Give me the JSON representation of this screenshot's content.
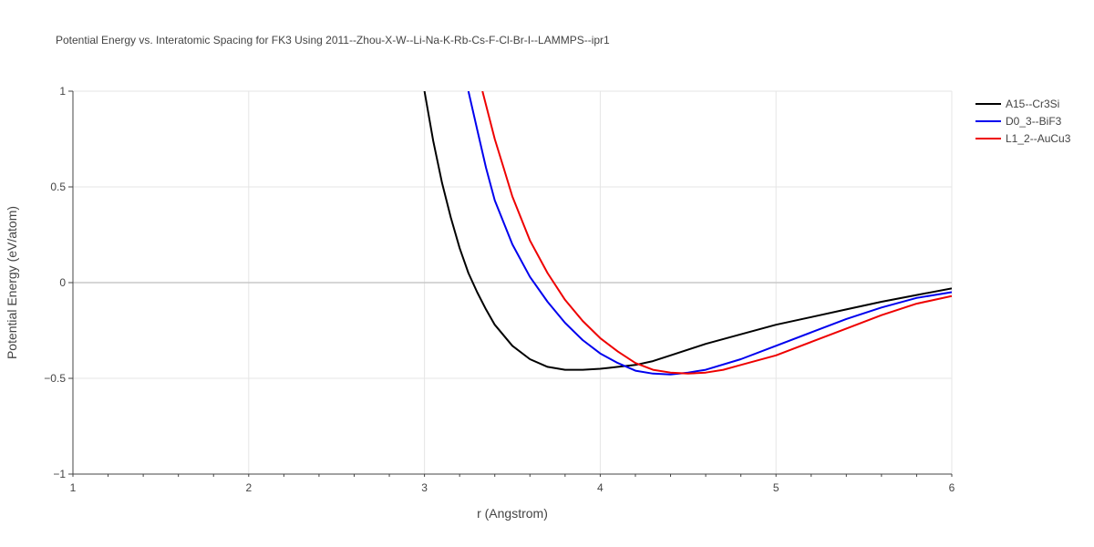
{
  "chart_data": {
    "type": "line",
    "title": "Potential Energy vs. Interatomic Spacing for FK3 Using 2011--Zhou-X-W--Li-Na-K-Rb-Cs-F-Cl-Br-I--LAMMPS--ipr1",
    "xlabel": "r (Angstrom)",
    "ylabel": "Potential Energy (eV/atom)",
    "xlim": [
      1,
      6
    ],
    "ylim": [
      -1,
      1
    ],
    "xticks": [
      1,
      2,
      3,
      4,
      5,
      6
    ],
    "xtick_labels": [
      "1",
      "2",
      "3",
      "4",
      "5",
      "6"
    ],
    "yticks": [
      -1,
      -0.5,
      0,
      0.5,
      1
    ],
    "ytick_labels": [
      "−1",
      "−0.5",
      "0",
      "0.5",
      "1"
    ],
    "grid": true,
    "legend_position": "top-right",
    "series": [
      {
        "name": "A15--Cr3Si",
        "color": "#000000",
        "x": [
          3.0,
          3.05,
          3.1,
          3.15,
          3.2,
          3.25,
          3.3,
          3.35,
          3.4,
          3.5,
          3.6,
          3.7,
          3.8,
          3.9,
          4.0,
          4.05,
          4.1,
          4.2,
          4.3,
          4.4,
          4.6,
          4.8,
          5.0,
          5.2,
          5.4,
          5.6,
          5.8,
          6.0
        ],
        "y": [
          1.0,
          0.74,
          0.52,
          0.34,
          0.18,
          0.05,
          -0.05,
          -0.14,
          -0.22,
          -0.33,
          -0.4,
          -0.44,
          -0.455,
          -0.455,
          -0.45,
          -0.445,
          -0.44,
          -0.43,
          -0.41,
          -0.38,
          -0.32,
          -0.27,
          -0.22,
          -0.18,
          -0.14,
          -0.1,
          -0.065,
          -0.03
        ]
      },
      {
        "name": "D0_3--BiF3",
        "color": "#0000ee",
        "x": [
          3.25,
          3.3,
          3.35,
          3.4,
          3.5,
          3.6,
          3.7,
          3.8,
          3.9,
          4.0,
          4.1,
          4.2,
          4.3,
          4.4,
          4.5,
          4.6,
          4.8,
          5.0,
          5.2,
          5.4,
          5.6,
          5.8,
          6.0
        ],
        "y": [
          1.0,
          0.8,
          0.6,
          0.43,
          0.2,
          0.03,
          -0.1,
          -0.21,
          -0.3,
          -0.37,
          -0.42,
          -0.46,
          -0.475,
          -0.48,
          -0.47,
          -0.455,
          -0.4,
          -0.33,
          -0.26,
          -0.19,
          -0.13,
          -0.08,
          -0.05
        ]
      },
      {
        "name": "L1_2--AuCu3",
        "color": "#ee0000",
        "x": [
          3.33,
          3.4,
          3.45,
          3.5,
          3.6,
          3.7,
          3.8,
          3.9,
          4.0,
          4.1,
          4.2,
          4.3,
          4.4,
          4.5,
          4.6,
          4.7,
          4.8,
          5.0,
          5.2,
          5.4,
          5.6,
          5.8,
          6.0
        ],
        "y": [
          1.0,
          0.75,
          0.6,
          0.45,
          0.22,
          0.05,
          -0.09,
          -0.2,
          -0.29,
          -0.36,
          -0.42,
          -0.455,
          -0.47,
          -0.475,
          -0.47,
          -0.455,
          -0.43,
          -0.38,
          -0.31,
          -0.24,
          -0.17,
          -0.11,
          -0.07
        ]
      }
    ]
  }
}
